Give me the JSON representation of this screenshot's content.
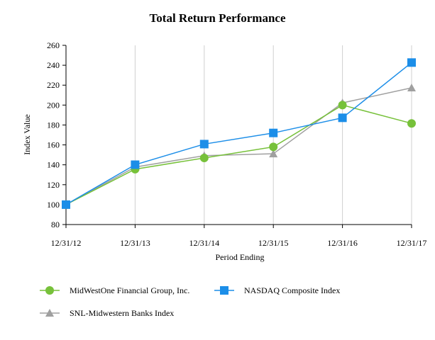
{
  "chart_data": {
    "type": "line",
    "title": "Total Return Performance",
    "xlabel": "Period Ending",
    "ylabel": "Index Value",
    "categories": [
      "12/31/12",
      "12/31/13",
      "12/31/14",
      "12/31/15",
      "12/31/16",
      "12/31/17"
    ],
    "ylim": [
      80,
      260
    ],
    "yticks": [
      80,
      100,
      120,
      140,
      160,
      180,
      200,
      220,
      240,
      260
    ],
    "grid": "vertical",
    "legend_position": "bottom",
    "series": [
      {
        "name": "MidWestOne Financial Group, Inc.",
        "color": "#77c13a",
        "marker": "circle",
        "values": [
          100.0,
          135.6,
          146.9,
          158.0,
          200.0,
          181.6
        ]
      },
      {
        "name": "NASDAQ Composite Index",
        "color": "#1c8ee8",
        "marker": "square",
        "values": [
          100.0,
          140.1,
          160.8,
          172.0,
          187.2,
          242.7
        ]
      },
      {
        "name": "SNL-Midwestern Banks Index",
        "color": "#a0a0a0",
        "marker": "triangle",
        "values": [
          100.0,
          137.7,
          149.2,
          151.1,
          202.2,
          217.3
        ]
      }
    ]
  }
}
